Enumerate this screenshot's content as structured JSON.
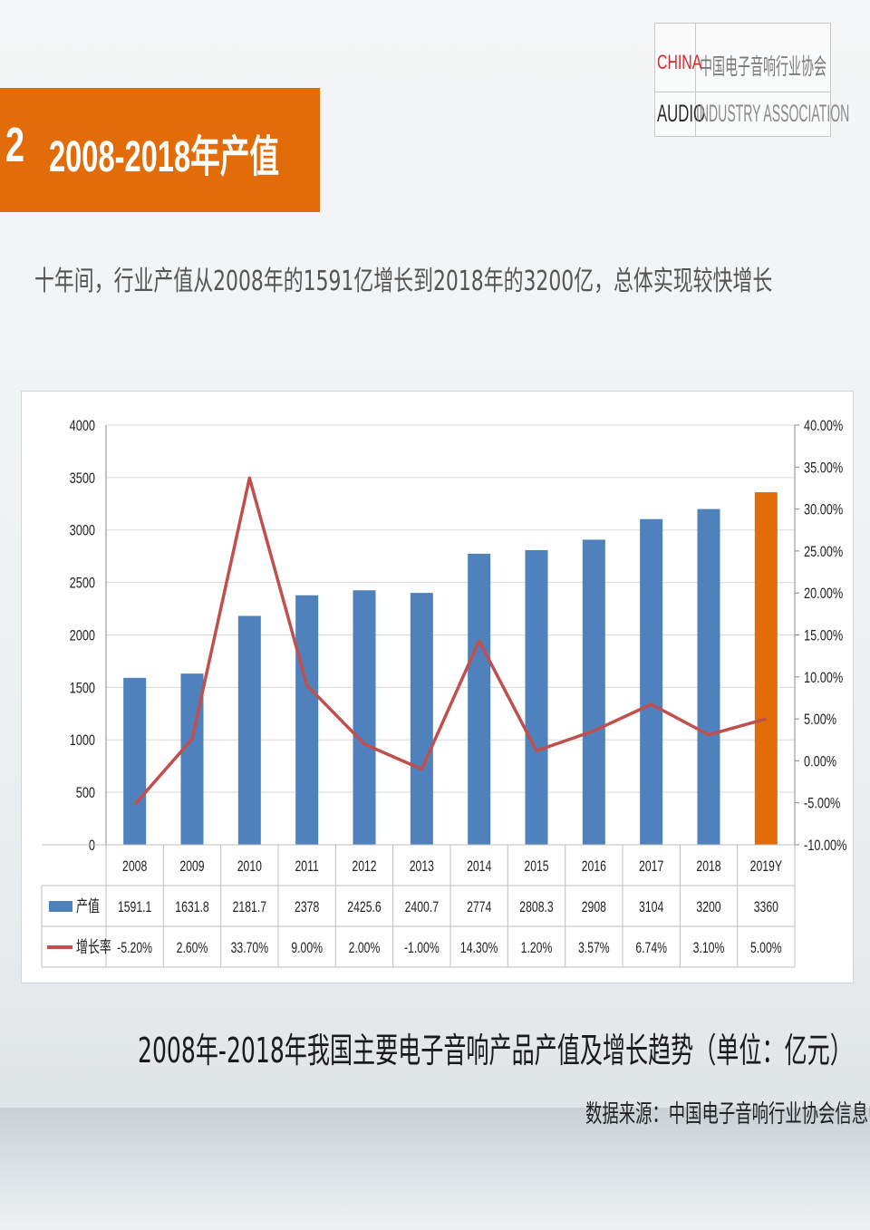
{
  "logo": {
    "china": "CHINA",
    "audio": "AUDIO",
    "cn_name": "中国电子音响行业协会",
    "en_name": "INDUSTRY ASSOCIATION"
  },
  "section": {
    "number": "2",
    "title": "2008-2018年产值"
  },
  "intro": "十年间，行业产值从2008年的1591亿增长到2018年的3200亿，总体实现较快增长",
  "caption": "2008年-2018年我国主要电子音响产品产值及增长趋势（单位：亿元）",
  "source": "数据来源：中国电子音响行业协会信息中心",
  "colors": {
    "bar": "#4f81bd",
    "bar_highlight": "#e36c0a",
    "line": "#c0504d",
    "banner": "#e36c0a"
  },
  "chart_data": {
    "type": "bar",
    "categories": [
      "2008",
      "2009",
      "2010",
      "2011",
      "2012",
      "2013",
      "2014",
      "2015",
      "2016",
      "2017",
      "2018",
      "2019Y"
    ],
    "series": [
      {
        "name": "产值",
        "type": "bar",
        "axis": "left",
        "values": [
          1591.1,
          1631.8,
          2181.7,
          2378,
          2425.6,
          2400.7,
          2774,
          2808.3,
          2908,
          3104,
          3200,
          3360
        ],
        "labels": [
          "1591.1",
          "1631.8",
          "2181.7",
          "2378",
          "2425.6",
          "2400.7",
          "2774",
          "2808.3",
          "2908",
          "3104",
          "3200",
          "3360"
        ]
      },
      {
        "name": "增长率",
        "type": "line",
        "axis": "right",
        "values": [
          -5.2,
          2.6,
          33.7,
          9.0,
          2.0,
          -1.0,
          14.3,
          1.2,
          3.57,
          6.74,
          3.1,
          5.0
        ],
        "labels": [
          "-5.20%",
          "2.60%",
          "33.70%",
          "9.00%",
          "2.00%",
          "-1.00%",
          "14.30%",
          "1.20%",
          "3.57%",
          "6.74%",
          "3.10%",
          "5.00%"
        ]
      }
    ],
    "highlight_category": "2019Y",
    "left_axis": {
      "min": 0,
      "max": 4000,
      "ticks": [
        "0",
        "500",
        "1000",
        "1500",
        "2000",
        "2500",
        "3000",
        "3500",
        "4000"
      ]
    },
    "right_axis": {
      "min": -10,
      "max": 40,
      "ticks": [
        "-10.00%",
        "-5.00%",
        "0.00%",
        "5.00%",
        "10.00%",
        "15.00%",
        "20.00%",
        "25.00%",
        "30.00%",
        "35.00%",
        "40.00%"
      ]
    },
    "grid": true,
    "legend": "data-table"
  }
}
